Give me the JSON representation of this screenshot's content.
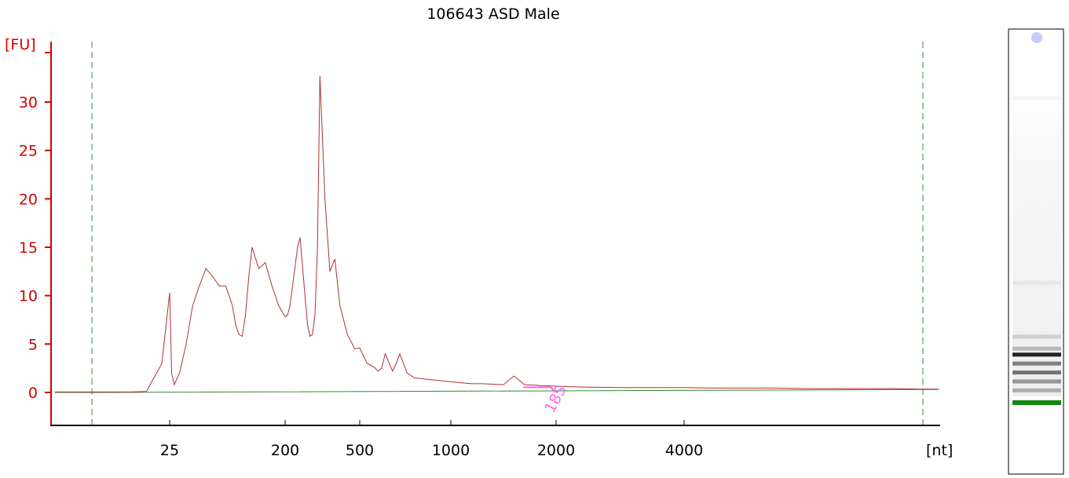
{
  "chart_data": {
    "type": "line",
    "title": "106643 ASD Male",
    "ylabel": "[FU]",
    "xlabel": "[nt]",
    "ylim": [
      -3,
      35
    ],
    "yticks": [
      0,
      5,
      10,
      15,
      20,
      25,
      30
    ],
    "xticks": [
      25,
      200,
      500,
      1000,
      2000,
      4000
    ],
    "grid": false,
    "colors": {
      "axis_y": "#d00000",
      "trace": "#b03030",
      "baseline": "#2e8b2e",
      "marker": "#ff66ee",
      "guide": "#3a8a3a"
    },
    "series": [
      {
        "x": [
          15,
          20,
          22,
          24,
          25,
          26,
          28,
          32,
          40,
          50,
          60,
          70,
          80,
          90,
          100,
          110,
          120,
          125,
          130,
          135,
          140,
          145,
          150,
          160,
          170,
          180,
          190,
          200,
          210,
          220,
          230,
          240,
          250,
          260,
          270,
          280,
          290,
          300,
          310,
          320,
          330,
          340,
          360,
          380,
          400,
          420,
          450,
          480,
          500,
          540,
          560,
          580,
          600,
          620,
          640,
          680,
          700,
          720,
          760,
          800,
          850,
          900,
          1000,
          1100,
          1200,
          1300,
          1400,
          1500,
          1600,
          1700,
          1800,
          1850,
          1900,
          2000,
          2200,
          2500,
          3000,
          3500,
          4000,
          4500,
          5000,
          5500,
          6000,
          6500,
          7000,
          7500,
          8000
        ],
        "y": [
          0.05,
          0.05,
          0.1,
          3,
          10.3,
          8,
          2,
          0.8,
          2,
          5,
          9,
          11,
          12.8,
          12,
          11,
          11,
          9,
          7,
          6,
          5.8,
          8,
          12,
          15,
          12.8,
          13.4,
          11,
          9,
          7.8,
          8,
          9,
          11,
          13,
          15,
          16,
          13,
          10,
          7,
          5.8,
          6,
          8,
          15,
          32.7,
          20,
          12.5,
          13.8,
          9,
          6,
          4.5,
          4.6,
          3,
          2.8,
          2.6,
          2.2,
          2.5,
          4,
          2.2,
          3,
          4,
          2,
          1.5,
          1.4,
          1.3,
          1.1,
          1,
          0.9,
          0.9,
          0.85,
          0.8,
          1.7,
          0.8,
          0.75,
          0.7,
          0.7,
          0.65,
          0.6,
          0.55,
          0.5,
          0.5,
          0.5,
          0.45,
          0.45,
          0.45,
          0.4,
          0.4,
          0.4,
          0.4,
          0.35
        ]
      },
      {
        "x": [
          15,
          8000
        ],
        "y": [
          0,
          0.3
        ]
      }
    ],
    "annotations": [
      {
        "label": "18S",
        "x": 1950,
        "y": 0.7
      }
    ],
    "gel_lane": {
      "bands": [
        {
          "position": 0.0,
          "intensity": 0.05
        },
        {
          "position": 0.62,
          "intensity": 0.1
        },
        {
          "position": 0.8,
          "intensity": 0.2
        },
        {
          "position": 0.84,
          "intensity": 0.3
        },
        {
          "position": 0.86,
          "intensity": 0.95
        },
        {
          "position": 0.89,
          "intensity": 0.55
        },
        {
          "position": 0.92,
          "intensity": 0.6
        },
        {
          "position": 0.95,
          "intensity": 0.45
        },
        {
          "position": 0.98,
          "intensity": 0.35
        }
      ],
      "marker_color": "#118811",
      "dot_color": "#c8c8ff"
    }
  }
}
